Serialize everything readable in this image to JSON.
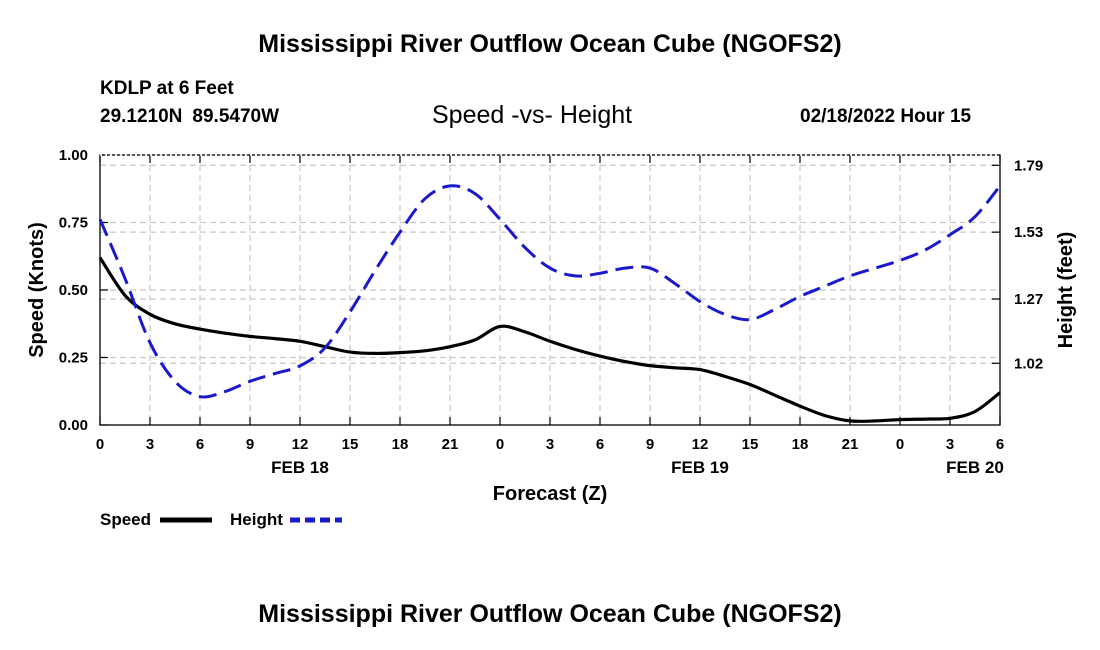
{
  "header": {
    "title": "Mississippi River Outflow Ocean Cube (NGOFS2)",
    "station": "KDLP at 6 Feet",
    "lat": "29.1210N",
    "lon": "89.5470W",
    "subtitle": "Speed -vs- Height",
    "datetime": "02/18/2022 Hour 15"
  },
  "footer": {
    "title": "Mississippi River Outflow Ocean Cube (NGOFS2)"
  },
  "chart_data": {
    "type": "line",
    "xlabel": "Forecast (Z)",
    "ylabel_left": "Speed (Knots)",
    "ylabel_right": "Height (feet)",
    "x": [
      0,
      3,
      6,
      9,
      12,
      15,
      18,
      21,
      24,
      27,
      30,
      33,
      36,
      39,
      42,
      45,
      48,
      51,
      54
    ],
    "x_tick_labels": [
      "0",
      "3",
      "6",
      "9",
      "12",
      "15",
      "18",
      "21",
      "0",
      "3",
      "6",
      "9",
      "12",
      "15",
      "18",
      "21",
      "0",
      "3",
      "6"
    ],
    "day_labels": [
      {
        "x": 12,
        "label": "FEB 18"
      },
      {
        "x": 36,
        "label": "FEB 19"
      },
      {
        "x": 52.5,
        "label": "FEB 20"
      }
    ],
    "xlim": [
      0,
      54
    ],
    "y_left": {
      "lim": [
        0,
        1
      ],
      "ticks": [
        "0.00",
        "0.25",
        "0.50",
        "0.75",
        "1.00"
      ],
      "tick_values": [
        0,
        0.25,
        0.5,
        0.75,
        1.0
      ]
    },
    "y_right": {
      "lim": [
        0.78,
        1.83
      ],
      "ticks": [
        "1.02",
        "1.27",
        "1.53",
        "1.79"
      ],
      "tick_values": [
        1.02,
        1.27,
        1.53,
        1.79
      ]
    },
    "grid": true,
    "legend_position": "bottom-left",
    "series": [
      {
        "name": "Speed",
        "axis": "left",
        "color": "#000000",
        "style": "solid",
        "x": [
          0,
          1.5,
          3,
          4.5,
          6,
          7.5,
          9,
          10.5,
          12,
          13.5,
          15,
          16.5,
          18,
          19.5,
          21,
          22.5,
          24,
          25.5,
          27,
          28.5,
          30,
          31.5,
          33,
          34.5,
          36,
          37.5,
          39,
          40.5,
          42,
          43.5,
          45,
          46.5,
          48,
          49.5,
          51,
          52.5,
          54
        ],
        "values": [
          0.62,
          0.48,
          0.41,
          0.375,
          0.355,
          0.34,
          0.328,
          0.32,
          0.31,
          0.29,
          0.27,
          0.265,
          0.268,
          0.275,
          0.29,
          0.315,
          0.365,
          0.345,
          0.31,
          0.28,
          0.255,
          0.235,
          0.22,
          0.212,
          0.205,
          0.18,
          0.15,
          0.11,
          0.07,
          0.035,
          0.015,
          0.015,
          0.02,
          0.022,
          0.025,
          0.05,
          0.12
        ]
      },
      {
        "name": "Height",
        "axis": "right",
        "color": "#1a1acc",
        "style": "dashed",
        "x": [
          0,
          1.5,
          3,
          4.5,
          6,
          7.5,
          9,
          10.5,
          12,
          13.5,
          15,
          16.5,
          18,
          19.5,
          21,
          22.5,
          24,
          25.5,
          27,
          28.5,
          30,
          31.5,
          33,
          34.5,
          36,
          37.5,
          39,
          40.5,
          42,
          43.5,
          45,
          46.5,
          48,
          49.5,
          51,
          52.5,
          54
        ],
        "values": [
          1.58,
          1.35,
          1.1,
          0.95,
          0.89,
          0.91,
          0.95,
          0.98,
          1.01,
          1.08,
          1.22,
          1.38,
          1.53,
          1.66,
          1.71,
          1.68,
          1.58,
          1.47,
          1.39,
          1.36,
          1.37,
          1.39,
          1.39,
          1.33,
          1.26,
          1.21,
          1.19,
          1.23,
          1.28,
          1.32,
          1.36,
          1.39,
          1.42,
          1.46,
          1.52,
          1.59,
          1.71
        ]
      }
    ]
  }
}
